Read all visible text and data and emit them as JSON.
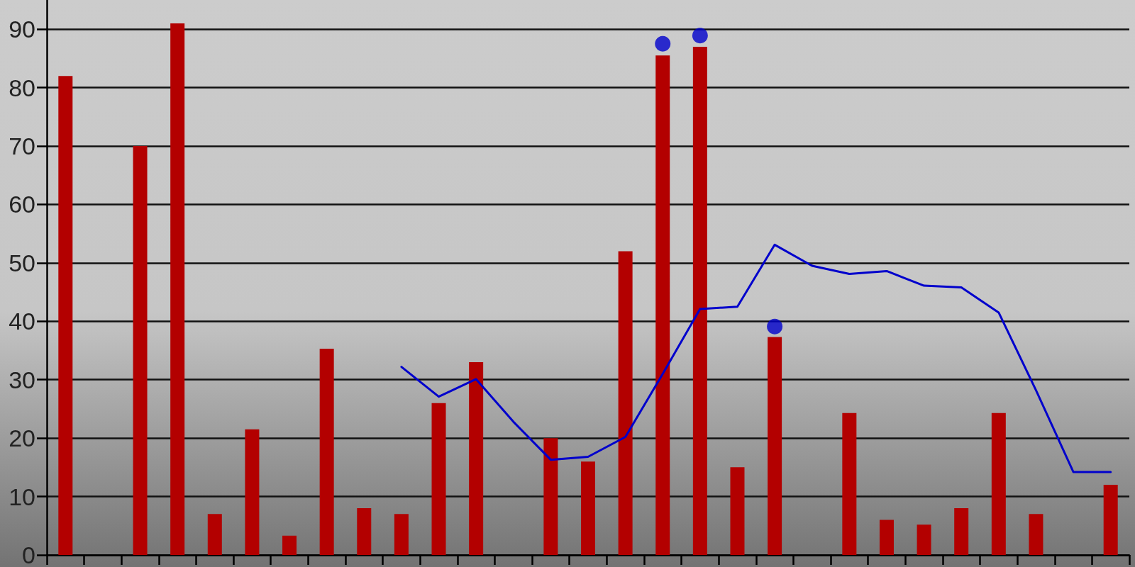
{
  "chart_data": {
    "type": "bar",
    "categories": [
      null,
      null,
      null,
      null,
      null,
      null,
      null,
      null,
      null,
      null,
      null,
      null,
      null,
      null,
      null,
      null,
      null,
      null,
      null,
      null,
      null,
      null,
      null,
      null,
      null,
      null,
      null,
      null,
      null
    ],
    "series": [
      {
        "color": "#b30000",
        "values": [
          82,
          null,
          70,
          91,
          7,
          21.5,
          3.3,
          35.3,
          8,
          7,
          26,
          33,
          null,
          20,
          16,
          52,
          85.5,
          87,
          15,
          37.3,
          null,
          24.3,
          6,
          5.2,
          8,
          24.3,
          7,
          null,
          12
        ]
      },
      {
        "type": "line",
        "color": "#0000cc",
        "marker": "none",
        "line_style": "solid",
        "values": [
          null,
          null,
          null,
          null,
          null,
          null,
          null,
          null,
          null,
          32.2,
          27.1,
          30.1,
          22.8,
          16.3,
          16.8,
          20.2,
          31,
          42.1,
          42.5,
          53.1,
          49.5,
          48.1,
          48.6,
          46.1,
          45.8,
          41.5,
          28.2,
          14.2,
          14.2
        ]
      },
      {
        "type": "scatter",
        "color": "#0000cc",
        "marker": "circle",
        "values": [
          null,
          null,
          null,
          null,
          null,
          null,
          null,
          null,
          null,
          null,
          null,
          null,
          null,
          null,
          null,
          null,
          87.5,
          88.9,
          null,
          39.1,
          null,
          null,
          null,
          null,
          null,
          null,
          null,
          null,
          null
        ]
      }
    ],
    "ylim": [
      0,
      95
    ],
    "yticks": [
      0,
      10,
      20,
      30,
      40,
      50,
      60,
      70,
      80,
      90
    ],
    "grid": "y",
    "tick_labels": "y"
  }
}
